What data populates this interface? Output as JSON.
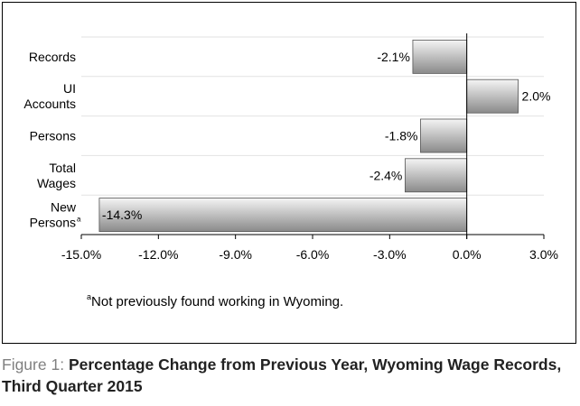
{
  "figure": {
    "label": "Figure 1:",
    "title": "Percentage Change from Previous Year, Wyoming Wage Records, Third Quarter 2015"
  },
  "footnote": {
    "marker": "a",
    "text": "Not previously found working in Wyoming."
  },
  "chart_data": {
    "type": "bar",
    "orientation": "horizontal",
    "title": "",
    "xlabel": "",
    "ylabel": "",
    "xlim": [
      -15.0,
      3.0
    ],
    "x_ticks": [
      -15.0,
      -12.0,
      -9.0,
      -6.0,
      -3.0,
      0.0,
      3.0
    ],
    "x_tick_labels": [
      "-15.0%",
      "-12.0%",
      "-9.0%",
      "-6.0%",
      "-3.0%",
      "0.0%",
      "3.0%"
    ],
    "grid": true,
    "legend": "none",
    "bar_fill": [
      "#f4f4f4",
      "#8a8a8a"
    ],
    "categories": [
      {
        "lines": [
          "Records"
        ],
        "superscript": ""
      },
      {
        "lines": [
          "UI",
          "Accounts"
        ],
        "superscript": ""
      },
      {
        "lines": [
          "Persons"
        ],
        "superscript": ""
      },
      {
        "lines": [
          "Total",
          "Wages"
        ],
        "superscript": ""
      },
      {
        "lines": [
          "New",
          "Persons"
        ],
        "superscript": "a"
      }
    ],
    "values": [
      -2.1,
      2.0,
      -1.8,
      -2.4,
      -14.3
    ],
    "data_labels": [
      "-2.1%",
      "2.0%",
      "-1.8%",
      "-2.4%",
      "-14.3%"
    ]
  }
}
